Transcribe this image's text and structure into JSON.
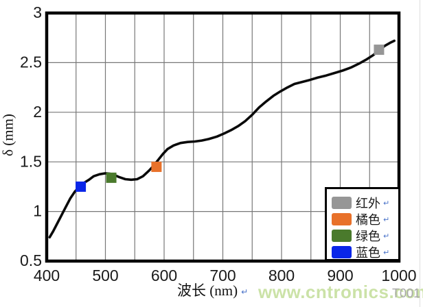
{
  "page": {
    "background": "#ffffff"
  },
  "watermark": {
    "text": "www.cntronics.com",
    "color": "#c6df9e"
  },
  "figure_tag": {
    "text": "T001",
    "color": "#a8a8a8"
  },
  "formatting_mark": "↵",
  "chart_data": {
    "type": "line",
    "title": "",
    "xlabel": "波长 (nm)",
    "ylabel": "δ (mm)",
    "xlim": [
      400,
      1000
    ],
    "ylim": [
      0.5,
      3
    ],
    "x_ticks": [
      400,
      500,
      600,
      700,
      800,
      900,
      1000
    ],
    "y_ticks": [
      0.5,
      1,
      1.5,
      2,
      2.5,
      3
    ],
    "x_grid_step": 50,
    "y_grid_step": 0.5,
    "grid": true,
    "grid_color": "#777777",
    "border_color": "#000000",
    "series": [
      {
        "name": "penetration-depth-curve",
        "color": "#0a0a0a",
        "points": [
          [
            405,
            0.74
          ],
          [
            411,
            0.8
          ],
          [
            418,
            0.88
          ],
          [
            425,
            0.96
          ],
          [
            432,
            1.04
          ],
          [
            440,
            1.13
          ],
          [
            448,
            1.2
          ],
          [
            456,
            1.25
          ],
          [
            464,
            1.29
          ],
          [
            472,
            1.32
          ],
          [
            480,
            1.355
          ],
          [
            490,
            1.375
          ],
          [
            500,
            1.385
          ],
          [
            508,
            1.38
          ],
          [
            516,
            1.365
          ],
          [
            524,
            1.345
          ],
          [
            534,
            1.325
          ],
          [
            544,
            1.32
          ],
          [
            554,
            1.325
          ],
          [
            564,
            1.355
          ],
          [
            574,
            1.41
          ],
          [
            582,
            1.46
          ],
          [
            590,
            1.52
          ],
          [
            598,
            1.58
          ],
          [
            606,
            1.63
          ],
          [
            616,
            1.665
          ],
          [
            628,
            1.69
          ],
          [
            640,
            1.7
          ],
          [
            652,
            1.705
          ],
          [
            664,
            1.715
          ],
          [
            676,
            1.73
          ],
          [
            690,
            1.755
          ],
          [
            702,
            1.785
          ],
          [
            714,
            1.82
          ],
          [
            726,
            1.86
          ],
          [
            738,
            1.91
          ],
          [
            750,
            1.975
          ],
          [
            762,
            2.05
          ],
          [
            774,
            2.11
          ],
          [
            786,
            2.165
          ],
          [
            798,
            2.21
          ],
          [
            810,
            2.25
          ],
          [
            822,
            2.285
          ],
          [
            835,
            2.305
          ],
          [
            848,
            2.325
          ],
          [
            862,
            2.35
          ],
          [
            876,
            2.37
          ],
          [
            890,
            2.395
          ],
          [
            904,
            2.42
          ],
          [
            918,
            2.45
          ],
          [
            932,
            2.49
          ],
          [
            944,
            2.53
          ],
          [
            956,
            2.575
          ],
          [
            966,
            2.625
          ],
          [
            976,
            2.67
          ],
          [
            985,
            2.7
          ],
          [
            992,
            2.72
          ]
        ]
      }
    ],
    "markers": [
      {
        "name": "红外",
        "x": 966,
        "y": 2.63,
        "color": "#969696"
      },
      {
        "name": "橘色",
        "x": 587,
        "y": 1.45,
        "color": "#e8712a"
      },
      {
        "name": "绿色",
        "x": 510,
        "y": 1.34,
        "color": "#4a7a2c"
      },
      {
        "name": "蓝色",
        "x": 458,
        "y": 1.25,
        "color": "#0a26e8"
      }
    ],
    "legend": {
      "position": "bottom-right",
      "entries": [
        {
          "label": "红外",
          "color": "#969696"
        },
        {
          "label": "橘色",
          "color": "#e8712a"
        },
        {
          "label": "绿色",
          "color": "#4a7a2c"
        },
        {
          "label": "蓝色",
          "color": "#0a26e8"
        }
      ]
    }
  }
}
